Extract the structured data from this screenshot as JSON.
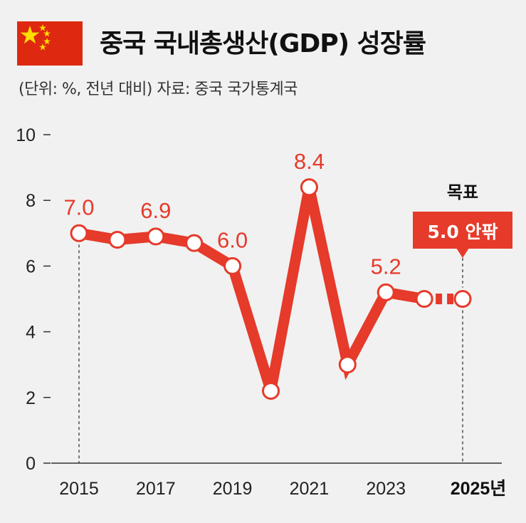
{
  "header": {
    "title": "중국 국내총생산(GDP) 성장률",
    "subtitle": "(단위: %, 전년 대비) 자료: 중국 국가통계국",
    "flag_icon": "china-flag-icon"
  },
  "colors": {
    "line": "#e63a2a",
    "target_box": "#e63a2a",
    "flag_red": "#de2910",
    "flag_star": "#ffde00"
  },
  "target": {
    "heading": "목표",
    "value_label": "5.0 안팎"
  },
  "chart_data": {
    "type": "line",
    "title": "중국 국내총생산(GDP) 성장률",
    "xlabel": "",
    "ylabel": "",
    "ylim": [
      0,
      10
    ],
    "yticks": [
      "0",
      "2",
      "4",
      "6",
      "8",
      "10"
    ],
    "xticks": [
      "2015",
      "2017",
      "2019",
      "2021",
      "2023",
      "2025년"
    ],
    "grid": false,
    "x": [
      2015,
      2016,
      2017,
      2018,
      2019,
      2020,
      2021,
      2022,
      2023,
      2024,
      2025
    ],
    "series": [
      {
        "values": [
          7.0,
          6.8,
          6.9,
          6.7,
          6.0,
          2.2,
          8.4,
          3.0,
          5.2,
          5.0,
          5.0
        ]
      }
    ],
    "data_labels": [
      {
        "x": 2015,
        "text": "7.0"
      },
      {
        "x": 2017,
        "text": "6.9"
      },
      {
        "x": 2019,
        "text": "6.0"
      },
      {
        "x": 2021,
        "text": "8.4"
      },
      {
        "x": 2023,
        "text": "5.2"
      }
    ]
  }
}
